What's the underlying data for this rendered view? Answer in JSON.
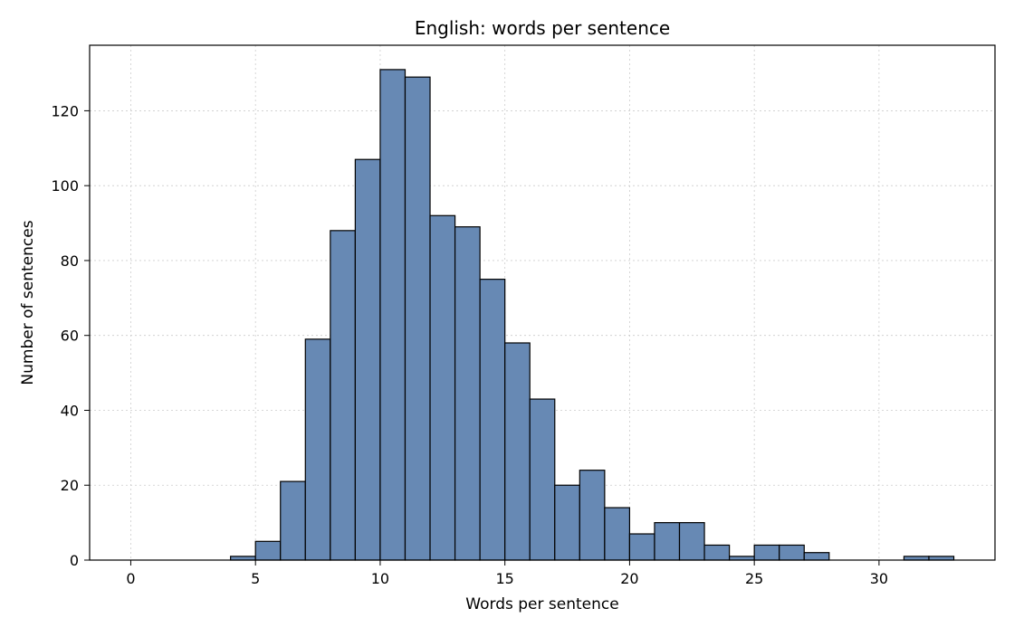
{
  "chart_data": {
    "type": "bar",
    "title": "English: words per sentence",
    "xlabel": "Words per sentence",
    "ylabel": "Number of sentences",
    "xlim": [
      -1.65,
      34.65
    ],
    "ylim": [
      0,
      137.5
    ],
    "xticks": [
      0,
      5,
      10,
      15,
      20,
      25,
      30
    ],
    "yticks": [
      0,
      20,
      40,
      60,
      80,
      100,
      120
    ],
    "grid": true,
    "bar_color": "#6789b4",
    "edge_color": "#000000",
    "bins": [
      {
        "x0": 4,
        "x1": 5,
        "count": 1
      },
      {
        "x0": 5,
        "x1": 6,
        "count": 5
      },
      {
        "x0": 6,
        "x1": 7,
        "count": 21
      },
      {
        "x0": 7,
        "x1": 8,
        "count": 59
      },
      {
        "x0": 8,
        "x1": 9,
        "count": 88
      },
      {
        "x0": 9,
        "x1": 10,
        "count": 107
      },
      {
        "x0": 10,
        "x1": 11,
        "count": 131
      },
      {
        "x0": 11,
        "x1": 12,
        "count": 129
      },
      {
        "x0": 12,
        "x1": 13,
        "count": 92
      },
      {
        "x0": 13,
        "x1": 14,
        "count": 89
      },
      {
        "x0": 14,
        "x1": 15,
        "count": 75
      },
      {
        "x0": 15,
        "x1": 16,
        "count": 58
      },
      {
        "x0": 16,
        "x1": 17,
        "count": 43
      },
      {
        "x0": 17,
        "x1": 18,
        "count": 20
      },
      {
        "x0": 18,
        "x1": 19,
        "count": 24
      },
      {
        "x0": 19,
        "x1": 20,
        "count": 14
      },
      {
        "x0": 20,
        "x1": 21,
        "count": 7
      },
      {
        "x0": 21,
        "x1": 22,
        "count": 10
      },
      {
        "x0": 22,
        "x1": 23,
        "count": 10
      },
      {
        "x0": 23,
        "x1": 24,
        "count": 4
      },
      {
        "x0": 24,
        "x1": 25,
        "count": 1
      },
      {
        "x0": 25,
        "x1": 26,
        "count": 4
      },
      {
        "x0": 26,
        "x1": 27,
        "count": 4
      },
      {
        "x0": 27,
        "x1": 28,
        "count": 2
      },
      {
        "x0": 28,
        "x1": 29,
        "count": 0
      },
      {
        "x0": 29,
        "x1": 30,
        "count": 0
      },
      {
        "x0": 30,
        "x1": 31,
        "count": 0
      },
      {
        "x0": 31,
        "x1": 32,
        "count": 1
      },
      {
        "x0": 32,
        "x1": 33,
        "count": 1
      }
    ]
  }
}
